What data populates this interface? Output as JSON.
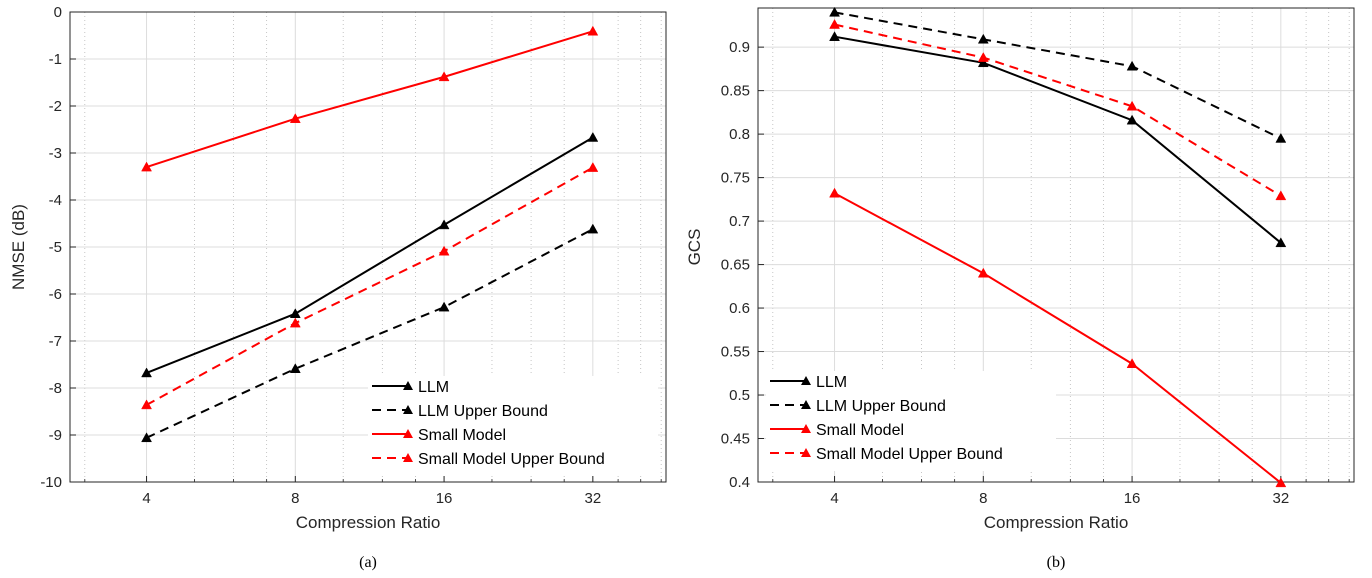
{
  "chart_data": [
    {
      "type": "line",
      "caption": "(a)",
      "xlabel": "Compression Ratio",
      "ylabel": "NMSE (dB)",
      "x_scale": "log2",
      "x": [
        4,
        8,
        16,
        32
      ],
      "xlim": [
        2.8,
        45
      ],
      "ylim": [
        -10,
        0
      ],
      "x_ticks": [
        "4",
        "8",
        "16",
        "32"
      ],
      "y_ticks": [
        "0",
        "-1",
        "-2",
        "-3",
        "-4",
        "-5",
        "-6",
        "-7",
        "-8",
        "-9",
        "-10"
      ],
      "grid": true,
      "legend_position": "bottom-right",
      "series": [
        {
          "name": "LLM",
          "color": "#000000",
          "dash": false,
          "values": [
            -7.68,
            -6.42,
            -4.53,
            -2.67
          ]
        },
        {
          "name": "LLM Upper Bound",
          "color": "#000000",
          "dash": true,
          "values": [
            -9.06,
            -7.59,
            -6.28,
            -4.62
          ]
        },
        {
          "name": "Small Model",
          "color": "#ff0000",
          "dash": false,
          "values": [
            -3.3,
            -2.27,
            -1.38,
            -0.41
          ]
        },
        {
          "name": "Small Model Upper Bound",
          "color": "#ff0000",
          "dash": true,
          "values": [
            -8.36,
            -6.62,
            -5.09,
            -3.31
          ]
        }
      ]
    },
    {
      "type": "line",
      "caption": "(b)",
      "xlabel": "Compression Ratio",
      "ylabel": "GCS",
      "x_scale": "log2",
      "x": [
        4,
        8,
        16,
        32
      ],
      "xlim": [
        2.8,
        45
      ],
      "ylim": [
        0.4,
        0.945
      ],
      "x_ticks": [
        "4",
        "8",
        "16",
        "32"
      ],
      "y_ticks": [
        "0.9",
        "0.85",
        "0.8",
        "0.75",
        "0.7",
        "0.65",
        "0.6",
        "0.55",
        "0.5",
        "0.45",
        "0.4"
      ],
      "grid": true,
      "legend_position": "bottom-left",
      "series": [
        {
          "name": "LLM",
          "color": "#000000",
          "dash": false,
          "values": [
            0.912,
            0.882,
            0.816,
            0.675
          ]
        },
        {
          "name": "LLM Upper Bound",
          "color": "#000000",
          "dash": true,
          "values": [
            0.94,
            0.909,
            0.878,
            0.795
          ]
        },
        {
          "name": "Small Model",
          "color": "#ff0000",
          "dash": false,
          "values": [
            0.732,
            0.64,
            0.536,
            0.399
          ]
        },
        {
          "name": "Small Model Upper Bound",
          "color": "#ff0000",
          "dash": true,
          "values": [
            0.926,
            0.888,
            0.832,
            0.729
          ]
        }
      ]
    }
  ]
}
